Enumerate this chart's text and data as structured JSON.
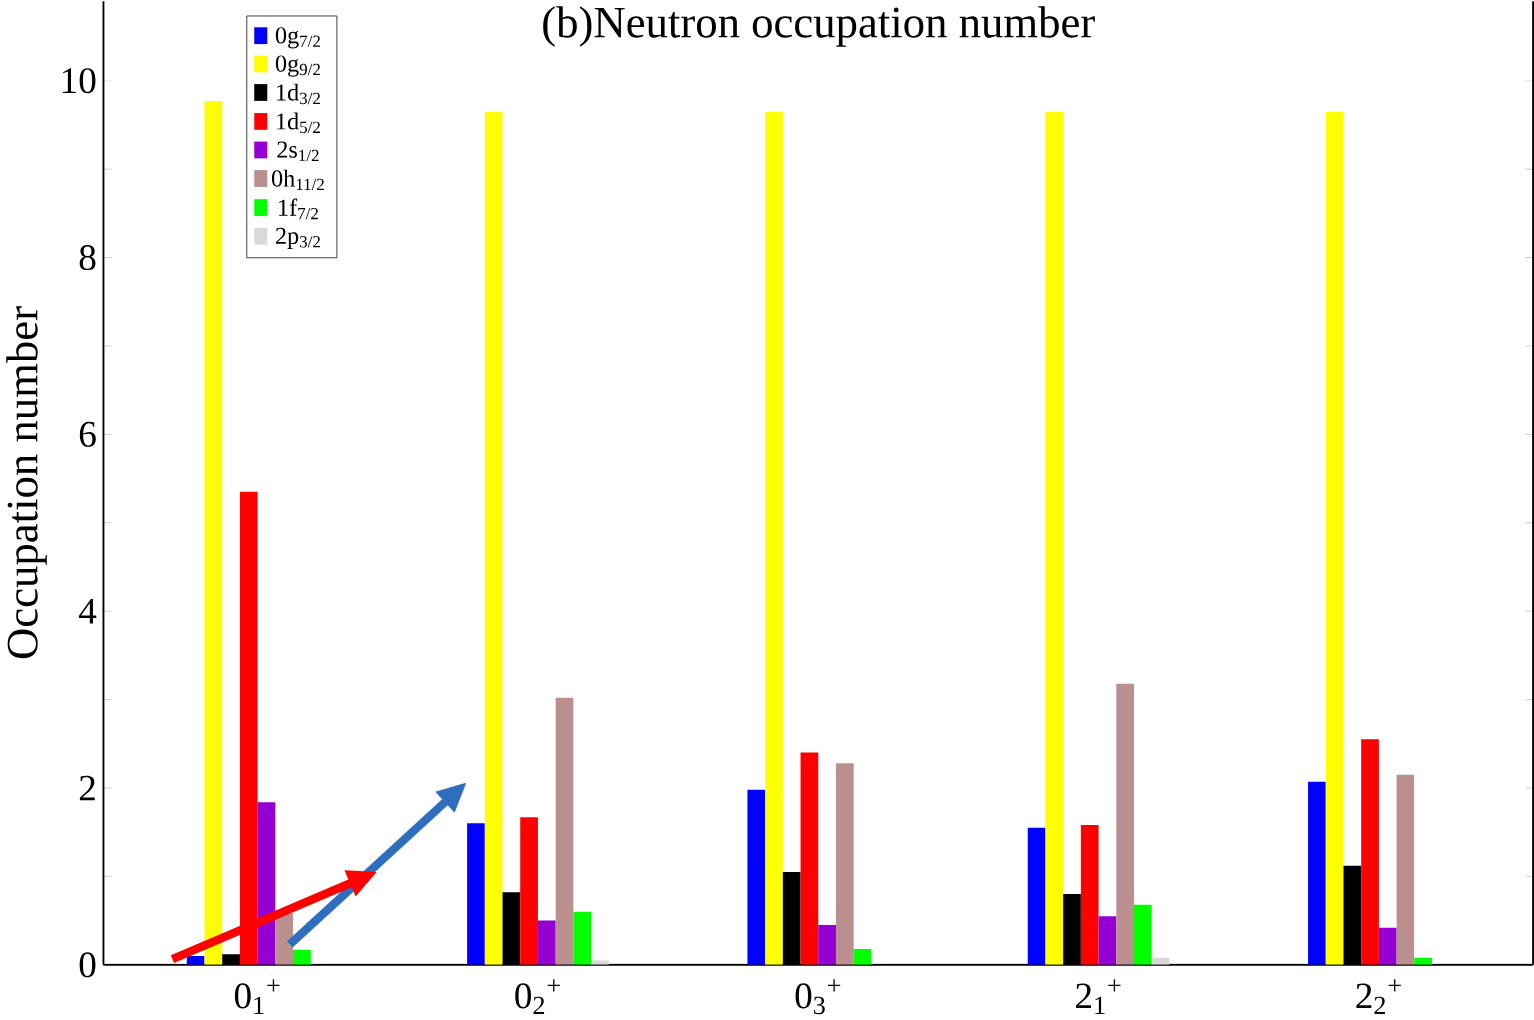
{
  "chart_data": {
    "type": "bar",
    "title": "(b)Neutron occupation number",
    "ylabel": "Occupation number",
    "categories": [
      "0$_{1}$$^{+}$",
      "0$_{2}$$^{+}$",
      "0$_{3}$$^{+}$",
      "2$_{1}$$^{+}$",
      "2$_{2}$$^{+}$"
    ],
    "series": [
      {
        "name": "0g$_{7/2}$",
        "color": "#0000ff",
        "values": [
          0.1,
          1.6,
          1.98,
          1.55,
          2.07
        ]
      },
      {
        "name": "0g$_{9/2}$",
        "color": "#ffff00",
        "values": [
          9.77,
          9.65,
          9.65,
          9.65,
          9.65
        ]
      },
      {
        "name": "1d$_{3/2}$",
        "color": "#000000",
        "values": [
          0.12,
          0.82,
          1.05,
          0.8,
          1.12
        ]
      },
      {
        "name": "1d$_{5/2}$",
        "color": "#ff0000",
        "values": [
          5.35,
          1.67,
          2.4,
          1.58,
          2.55
        ]
      },
      {
        "name": "2s$_{1/2}$",
        "color": "#9400d3",
        "values": [
          1.84,
          0.5,
          0.45,
          0.55,
          0.42
        ]
      },
      {
        "name": "0h$_{11/2}$",
        "color": "#bc8f8f",
        "values": [
          0.58,
          3.02,
          2.28,
          3.18,
          2.15
        ]
      },
      {
        "name": "1f$_{7/2}$",
        "color": "#00ff00",
        "values": [
          0.17,
          0.6,
          0.18,
          0.68,
          0.08
        ]
      },
      {
        "name": "2p$_{3/2}$",
        "color": "#d9d9d9",
        "values": [
          null,
          0.05,
          null,
          0.08,
          null
        ]
      }
    ],
    "ylim": [
      0,
      10.9
    ],
    "yticks": [
      0,
      {
        "value": 1,
        "label": null
      },
      2,
      {
        "value": 3,
        "label": null
      },
      4,
      {
        "value": 5,
        "label": null
      },
      6,
      {
        "value": 7,
        "label": null
      },
      8,
      {
        "value": 9,
        "label": null
      },
      10
    ],
    "legend": "top left"
  }
}
